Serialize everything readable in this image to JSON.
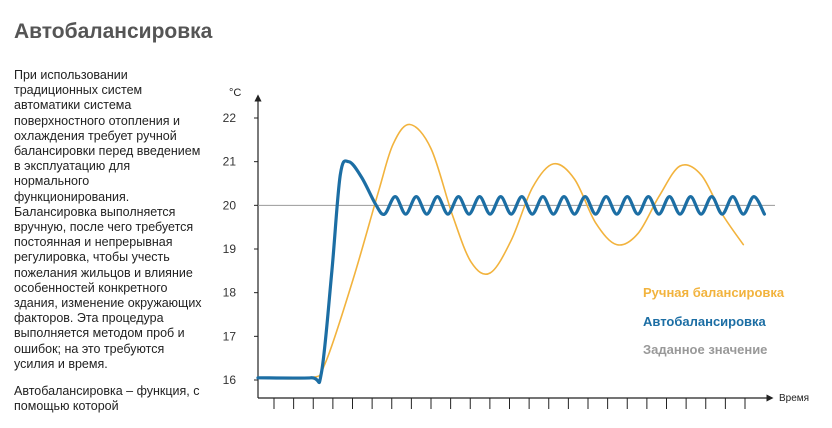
{
  "page": {
    "title": "Автобалансировка",
    "paragraph1": "При использовании традиционных систем автоматики система поверхностного отопления и охлаждения требует ручной балансировки перед введением в эксплуатацию для нормального функционирования. Балансировка выполняется вручную, после чего требуется постоянная и непрерывная регулировка, чтобы учесть пожелания жильцов и влияние особенностей конкретного здания, изменение окружающих факторов. Эта процедура выполняется методом проб и ошибок; на это требуются усилия и время.",
    "paragraph2": "Автобалансировка – функция, с помощью которой"
  },
  "chart_data": {
    "type": "line",
    "ylabel": "°C",
    "xlabel": "Время",
    "ylim": [
      16,
      22
    ],
    "yticks": [
      "16",
      "17",
      "18",
      "19",
      "20",
      "21",
      "22"
    ],
    "x_tick_count": 25,
    "legend_position": "right",
    "colors": {
      "manual": "#f2b33d",
      "auto": "#1c6ea4",
      "setpoint": "#999999"
    },
    "series": [
      {
        "name": "Ручная балансировка",
        "key": "manual",
        "points": [
          [
            0,
            16.05
          ],
          [
            2.5,
            16.05
          ],
          [
            3.2,
            16.4
          ],
          [
            4.5,
            18.3
          ],
          [
            5.7,
            20.3
          ],
          [
            6.4,
            21.4
          ],
          [
            7.2,
            21.85
          ],
          [
            8.2,
            21.3
          ],
          [
            9.2,
            19.8
          ],
          [
            10.1,
            18.7
          ],
          [
            11.0,
            18.45
          ],
          [
            12.0,
            19.2
          ],
          [
            13.0,
            20.4
          ],
          [
            14.0,
            20.95
          ],
          [
            15.0,
            20.6
          ],
          [
            16.0,
            19.6
          ],
          [
            17.0,
            19.1
          ],
          [
            18.0,
            19.35
          ],
          [
            19.0,
            20.2
          ],
          [
            20.0,
            20.9
          ],
          [
            21.0,
            20.7
          ],
          [
            22.0,
            19.8
          ],
          [
            23.0,
            19.1
          ]
        ]
      },
      {
        "name": "Автобалансировка",
        "key": "auto",
        "points": [
          [
            0,
            16.05
          ],
          [
            2.5,
            16.05
          ],
          [
            3.0,
            16.15
          ],
          [
            3.5,
            18.5
          ],
          [
            3.9,
            20.7
          ],
          [
            4.3,
            21.0
          ],
          [
            4.9,
            20.65
          ],
          [
            5.6,
            20.0
          ],
          [
            6.0,
            19.8
          ],
          [
            6.5,
            20.2
          ],
          [
            7.0,
            19.8
          ],
          [
            7.5,
            20.2
          ],
          [
            8.0,
            19.8
          ],
          [
            8.5,
            20.2
          ],
          [
            9.0,
            19.8
          ],
          [
            9.5,
            20.2
          ],
          [
            10.0,
            19.8
          ],
          [
            10.5,
            20.2
          ],
          [
            11.0,
            19.8
          ],
          [
            11.5,
            20.2
          ],
          [
            12.0,
            19.8
          ],
          [
            12.5,
            20.2
          ],
          [
            13.0,
            19.8
          ],
          [
            13.5,
            20.2
          ],
          [
            14.0,
            19.8
          ],
          [
            14.5,
            20.2
          ],
          [
            15.0,
            19.8
          ],
          [
            15.5,
            20.2
          ],
          [
            16.0,
            19.8
          ],
          [
            16.5,
            20.2
          ],
          [
            17.0,
            19.8
          ],
          [
            17.5,
            20.2
          ],
          [
            18.0,
            19.8
          ],
          [
            18.5,
            20.2
          ],
          [
            19.0,
            19.8
          ],
          [
            19.5,
            20.2
          ],
          [
            20.0,
            19.8
          ],
          [
            20.5,
            20.2
          ],
          [
            21.0,
            19.8
          ],
          [
            21.5,
            20.2
          ],
          [
            22.0,
            19.8
          ],
          [
            22.5,
            20.2
          ],
          [
            23.0,
            19.8
          ],
          [
            23.5,
            20.2
          ],
          [
            24.0,
            19.8
          ]
        ]
      },
      {
        "name": "Заданное значение",
        "key": "setpoint",
        "points": [
          [
            0,
            20
          ],
          [
            24.5,
            20
          ]
        ]
      }
    ]
  }
}
